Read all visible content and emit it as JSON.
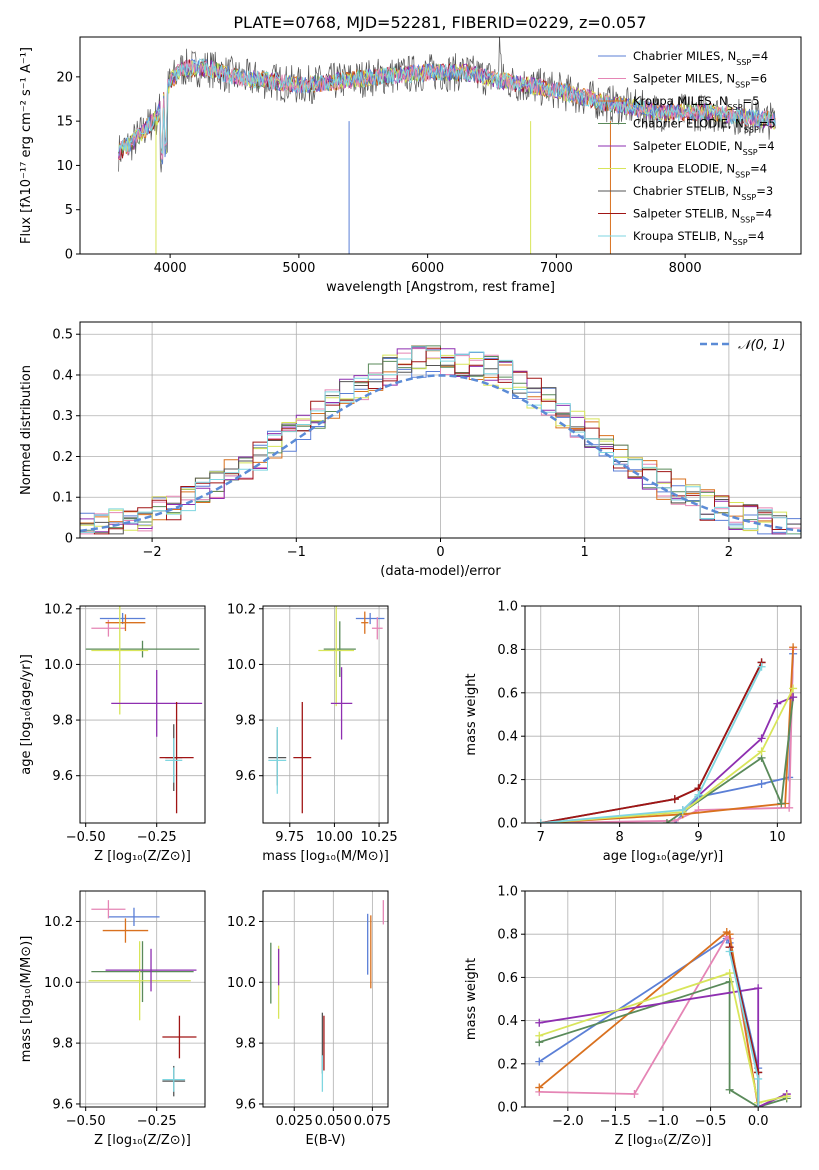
{
  "figure": {
    "title": "PLATE=0768, MJD=52281, FIBERID=0229, z=0.057"
  },
  "colors": {
    "Chabrier MILES": "#5b7fd6",
    "Salpeter MILES": "#e585b5",
    "Kroupa MILES": "#d9711f",
    "Chabrier ELODIE": "#5a8a5a",
    "Salpeter ELODIE": "#8e2fb0",
    "Kroupa ELODIE": "#d8e55a",
    "Chabrier STELIB": "#555555",
    "Salpeter STELIB": "#a01515",
    "Kroupa STELIB": "#7fd6e0",
    "normal": "#5b8bd6"
  },
  "chart_data": [
    {
      "id": "spectrum",
      "type": "line",
      "xlabel": "wavelength [Angstrom, rest frame]",
      "ylabel": "Flux [fλ10⁻¹⁷ erg cm⁻² s⁻¹ A⁻¹]",
      "xlim": [
        3300,
        8900
      ],
      "ylim": [
        0,
        24.5
      ],
      "xticks": [
        4000,
        5000,
        6000,
        7000,
        8000
      ],
      "yticks": [
        0,
        5,
        10,
        15,
        20
      ],
      "legend_position": "top-right",
      "legend": [
        {
          "name": "Chabrier MILES",
          "sub": "SSP",
          "n": "4"
        },
        {
          "name": "Salpeter MILES",
          "sub": "SSP",
          "n": "6"
        },
        {
          "name": "Kroupa MILES",
          "sub": "SSP",
          "n": "5"
        },
        {
          "name": "Chabrier ELODIE",
          "sub": "SSP",
          "n": "5"
        },
        {
          "name": "Salpeter ELODIE",
          "sub": "SSP",
          "n": "4"
        },
        {
          "name": "Kroupa ELODIE",
          "sub": "SSP",
          "n": "4"
        },
        {
          "name": "Chabrier STELIB",
          "sub": "SSP",
          "n": "3"
        },
        {
          "name": "Salpeter STELIB",
          "sub": "SSP",
          "n": "4"
        },
        {
          "name": "Kroupa STELIB",
          "sub": "SSP",
          "n": "4"
        }
      ],
      "continuum": {
        "x": [
          3600,
          3700,
          3800,
          3900,
          4000,
          4100,
          4300,
          4500,
          4800,
          5000,
          5300,
          5600,
          6000,
          6300,
          6600,
          7000,
          7400,
          7800,
          8200,
          8700
        ],
        "y": [
          11.5,
          12.5,
          14.0,
          15.5,
          19.5,
          21.0,
          21.0,
          20.0,
          19.5,
          19.0,
          19.5,
          20.0,
          20.5,
          20.5,
          19.5,
          18.5,
          17.0,
          16.0,
          16.0,
          15.0
        ]
      },
      "spike_down": [
        {
          "series": "Kroupa ELODIE",
          "x": 3890
        },
        {
          "series": "Chabrier MILES",
          "x": 5390
        },
        {
          "series": "Kroupa ELODIE",
          "x": 6800
        },
        {
          "series": "Kroupa MILES",
          "x": 7420
        }
      ]
    },
    {
      "id": "residuals",
      "type": "step",
      "xlabel": "(data-model)/error",
      "ylabel": "Normed distribution",
      "xlim": [
        -2.5,
        2.5
      ],
      "ylim": [
        0,
        0.53
      ],
      "xticks": [
        -2,
        -1,
        0,
        1,
        2
      ],
      "yticks": [
        0.0,
        0.1,
        0.2,
        0.3,
        0.4,
        0.5
      ],
      "legend_position": "top-right",
      "legend": [
        {
          "name": "𝒩(0, 1)"
        }
      ],
      "reference_curve": "standard normal N(0,1)"
    },
    {
      "id": "age_vs_Z",
      "type": "errorbar",
      "xlabel": "Z [log₁₀(Z/Z⊙)]",
      "ylabel": "age  [log₁₀(age/yr)]",
      "xlim": [
        -0.52,
        -0.08
      ],
      "ylim": [
        9.43,
        10.21
      ],
      "xticks": [
        -0.5,
        -0.25
      ],
      "yticks": [
        9.6,
        9.8,
        10.0,
        10.2
      ],
      "points": [
        {
          "series": "Chabrier MILES",
          "x": -0.37,
          "y": 10.165,
          "xerr": 0.08,
          "yerr": 0.02
        },
        {
          "series": "Salpeter MILES",
          "x": -0.42,
          "y": 10.13,
          "xerr": 0.06,
          "yerr": 0.03
        },
        {
          "series": "Kroupa MILES",
          "x": -0.36,
          "y": 10.15,
          "xerr": 0.07,
          "yerr": 0.03
        },
        {
          "series": "Chabrier ELODIE",
          "x": -0.3,
          "y": 10.055,
          "xerr": 0.2,
          "yerr": 0.03
        },
        {
          "series": "Kroupa ELODIE",
          "x": -0.38,
          "y": 10.05,
          "xerr": 0.1,
          "yerr": 0.23
        },
        {
          "series": "Salpeter ELODIE",
          "x": -0.25,
          "y": 9.86,
          "xerr": 0.16,
          "yerr": 0.12
        },
        {
          "series": "Chabrier STELIB",
          "x": -0.19,
          "y": 9.665,
          "xerr": 0.03,
          "yerr": 0.12
        },
        {
          "series": "Salpeter STELIB",
          "x": -0.18,
          "y": 9.665,
          "xerr": 0.06,
          "yerr": 0.2
        },
        {
          "series": "Kroupa STELIB",
          "x": -0.19,
          "y": 9.655,
          "xerr": 0.03,
          "yerr": 0.08
        }
      ]
    },
    {
      "id": "age_vs_mass",
      "type": "errorbar",
      "xlabel": "mass [log₁₀(M/M⊙)]",
      "ylabel": "",
      "xlim": [
        9.6,
        10.3
      ],
      "ylim": [
        9.43,
        10.21
      ],
      "xticks": [
        9.75,
        10.0,
        10.25
      ],
      "yticks": [
        9.6,
        9.8,
        10.0,
        10.2
      ],
      "points": [
        {
          "series": "Chabrier MILES",
          "x": 10.2,
          "y": 10.165,
          "xerr": 0.08,
          "yerr": 0.02
        },
        {
          "series": "Salpeter MILES",
          "x": 10.24,
          "y": 10.13,
          "xerr": 0.03,
          "yerr": 0.04
        },
        {
          "series": "Kroupa MILES",
          "x": 10.17,
          "y": 10.15,
          "xerr": 0.02,
          "yerr": 0.04
        },
        {
          "series": "Chabrier ELODIE",
          "x": 10.03,
          "y": 10.055,
          "xerr": 0.09,
          "yerr": 0.1
        },
        {
          "series": "Kroupa ELODIE",
          "x": 10.01,
          "y": 10.05,
          "xerr": 0.1,
          "yerr": 0.2
        },
        {
          "series": "Salpeter ELODIE",
          "x": 10.04,
          "y": 9.86,
          "xerr": 0.06,
          "yerr": 0.13
        },
        {
          "series": "Chabrier STELIB",
          "x": 9.68,
          "y": 9.665,
          "xerr": 0.05,
          "yerr": 0.1
        },
        {
          "series": "Salpeter STELIB",
          "x": 9.82,
          "y": 9.665,
          "xerr": 0.05,
          "yerr": 0.2
        },
        {
          "series": "Kroupa STELIB",
          "x": 9.68,
          "y": 9.655,
          "xerr": 0.05,
          "yerr": 0.12
        }
      ]
    },
    {
      "id": "weight_vs_age",
      "type": "line",
      "xlabel": "age  [log₁₀(age/yr)]",
      "ylabel": "mass weight",
      "xlim": [
        6.8,
        10.3
      ],
      "ylim": [
        0,
        1.0
      ],
      "xticks": [
        7,
        8,
        9,
        10
      ],
      "yticks": [
        0.0,
        0.2,
        0.4,
        0.6,
        0.8,
        1.0
      ],
      "series": [
        {
          "name": "Chabrier MILES",
          "x": [
            8.7,
            9.0,
            9.8,
            10.15,
            10.2
          ],
          "y": [
            0.0,
            0.12,
            0.18,
            0.21,
            0.78
          ]
        },
        {
          "name": "Salpeter MILES",
          "x": [
            7.0,
            8.7,
            9.0,
            10.15,
            10.2
          ],
          "y": [
            0.0,
            0.01,
            0.06,
            0.07,
            0.8
          ]
        },
        {
          "name": "Kroupa MILES",
          "x": [
            7.0,
            8.8,
            10.1,
            10.2
          ],
          "y": [
            0.0,
            0.04,
            0.09,
            0.81
          ]
        },
        {
          "name": "Chabrier ELODIE",
          "x": [
            8.6,
            9.8,
            10.05,
            10.2
          ],
          "y": [
            0.0,
            0.3,
            0.09,
            0.58
          ]
        },
        {
          "name": "Salpeter ELODIE",
          "x": [
            8.8,
            9.8,
            10.0,
            10.2
          ],
          "y": [
            0.06,
            0.39,
            0.55,
            0.58
          ]
        },
        {
          "name": "Kroupa ELODIE",
          "x": [
            7.0,
            8.8,
            9.8,
            10.2
          ],
          "y": [
            0.0,
            0.05,
            0.33,
            0.62
          ]
        },
        {
          "name": "Chabrier STELIB",
          "x": [
            7.0,
            8.7,
            9.0,
            9.8
          ],
          "y": [
            0.0,
            0.11,
            0.16,
            0.74
          ]
        },
        {
          "name": "Salpeter STELIB",
          "x": [
            7.0,
            8.7,
            9.0,
            9.8
          ],
          "y": [
            0.0,
            0.11,
            0.16,
            0.74
          ]
        },
        {
          "name": "Kroupa STELIB",
          "x": [
            7.0,
            8.8,
            9.0,
            9.8
          ],
          "y": [
            0.0,
            0.06,
            0.13,
            0.72
          ]
        }
      ]
    },
    {
      "id": "mass_vs_Z",
      "type": "errorbar",
      "xlabel": "Z [log₁₀(Z/Z⊙)]",
      "ylabel": "mass [log₁₀(M/M⊙)]",
      "xlim": [
        -0.52,
        -0.08
      ],
      "ylim": [
        9.59,
        10.3
      ],
      "xticks": [
        -0.5,
        -0.25
      ],
      "yticks": [
        9.6,
        9.8,
        10.0,
        10.2
      ],
      "points": [
        {
          "series": "Chabrier MILES",
          "x": -0.33,
          "y": 10.215,
          "xerr": 0.09,
          "yerr": 0.03
        },
        {
          "series": "Salpeter MILES",
          "x": -0.42,
          "y": 10.24,
          "xerr": 0.06,
          "yerr": 0.03
        },
        {
          "series": "Kroupa MILES",
          "x": -0.36,
          "y": 10.17,
          "xerr": 0.08,
          "yerr": 0.04
        },
        {
          "series": "Chabrier ELODIE",
          "x": -0.3,
          "y": 10.035,
          "xerr": 0.18,
          "yerr": 0.1
        },
        {
          "series": "Kroupa ELODIE",
          "x": -0.31,
          "y": 10.005,
          "xerr": 0.18,
          "yerr": 0.13
        },
        {
          "series": "Salpeter ELODIE",
          "x": -0.27,
          "y": 10.04,
          "xerr": 0.16,
          "yerr": 0.07
        },
        {
          "series": "Chabrier STELIB",
          "x": -0.19,
          "y": 9.675,
          "xerr": 0.04,
          "yerr": 0.05
        },
        {
          "series": "Salpeter STELIB",
          "x": -0.17,
          "y": 9.82,
          "xerr": 0.06,
          "yerr": 0.07
        },
        {
          "series": "Kroupa STELIB",
          "x": -0.19,
          "y": 9.68,
          "xerr": 0.04,
          "yerr": 0.04
        }
      ]
    },
    {
      "id": "mass_vs_ebv",
      "type": "errorbar",
      "xlabel": "E(B-V)",
      "ylabel": "",
      "xlim": [
        0.005,
        0.085
      ],
      "ylim": [
        9.59,
        10.3
      ],
      "xticks": [
        0.025,
        0.05,
        0.075
      ],
      "yticks": [
        9.6,
        9.8,
        10.0,
        10.2
      ],
      "points": [
        {
          "series": "Chabrier MILES",
          "x": 0.072,
          "y": 10.125,
          "xerr": 0.0,
          "yerr": 0.1
        },
        {
          "series": "Salpeter MILES",
          "x": 0.082,
          "y": 10.23,
          "xerr": 0.0,
          "yerr": 0.04
        },
        {
          "series": "Kroupa MILES",
          "x": 0.074,
          "y": 10.1,
          "xerr": 0.0,
          "yerr": 0.12
        },
        {
          "series": "Chabrier ELODIE",
          "x": 0.01,
          "y": 10.03,
          "xerr": 0.0,
          "yerr": 0.1
        },
        {
          "series": "Kroupa ELODIE",
          "x": 0.015,
          "y": 10.0,
          "xerr": 0.0,
          "yerr": 0.12
        },
        {
          "series": "Salpeter ELODIE",
          "x": 0.015,
          "y": 10.05,
          "xerr": 0.0,
          "yerr": 0.06
        },
        {
          "series": "Chabrier STELIB",
          "x": 0.043,
          "y": 9.8,
          "xerr": 0.0,
          "yerr": 0.1
        },
        {
          "series": "Salpeter STELIB",
          "x": 0.044,
          "y": 9.8,
          "xerr": 0.0,
          "yerr": 0.09
        },
        {
          "series": "Kroupa STELIB",
          "x": 0.043,
          "y": 9.7,
          "xerr": 0.0,
          "yerr": 0.06
        }
      ]
    },
    {
      "id": "weight_vs_Z",
      "type": "line",
      "xlabel": "Z [log₁₀(Z/Z⊙)]",
      "ylabel": "mass weight",
      "xlim": [
        -2.45,
        0.45
      ],
      "ylim": [
        0,
        1.0
      ],
      "xticks": [
        -2.0,
        -1.5,
        -1.0,
        -0.5,
        0.0
      ],
      "yticks": [
        0.0,
        0.2,
        0.4,
        0.6,
        0.8,
        1.0
      ],
      "series": [
        {
          "name": "Chabrier MILES",
          "x": [
            -2.3,
            -0.33,
            -0.3,
            0.0,
            0.0
          ],
          "y": [
            0.21,
            0.78,
            0.76,
            0.18,
            0.0
          ]
        },
        {
          "name": "Salpeter MILES",
          "x": [
            -2.3,
            -1.3,
            -0.33,
            -0.3,
            0.0,
            0.3
          ],
          "y": [
            0.07,
            0.06,
            0.79,
            0.78,
            0.0,
            0.06
          ]
        },
        {
          "name": "Kroupa MILES",
          "x": [
            -2.3,
            -0.33,
            -0.3,
            0.0
          ],
          "y": [
            0.09,
            0.81,
            0.8,
            0.0
          ]
        },
        {
          "name": "Chabrier ELODIE",
          "x": [
            -2.3,
            -0.3,
            -0.3,
            0.0,
            0.3
          ],
          "y": [
            0.3,
            0.58,
            0.08,
            0.0,
            0.04
          ]
        },
        {
          "name": "Salpeter ELODIE",
          "x": [
            -2.3,
            0.0,
            0.0,
            0.3
          ],
          "y": [
            0.39,
            0.55,
            0.0,
            0.06
          ]
        },
        {
          "name": "Kroupa ELODIE",
          "x": [
            -2.3,
            -0.3,
            0.0,
            0.3
          ],
          "y": [
            0.33,
            0.62,
            0.02,
            0.05
          ]
        },
        {
          "name": "Chabrier STELIB",
          "x": [
            -0.3,
            0.0,
            0.0
          ],
          "y": [
            0.74,
            0.16,
            0.0
          ]
        },
        {
          "name": "Salpeter STELIB",
          "x": [
            -0.3,
            0.0,
            0.0
          ],
          "y": [
            0.74,
            0.16,
            0.0
          ]
        },
        {
          "name": "Kroupa STELIB",
          "x": [
            -0.3,
            0.0,
            0.0
          ],
          "y": [
            0.72,
            0.13,
            0.0
          ]
        }
      ]
    }
  ]
}
